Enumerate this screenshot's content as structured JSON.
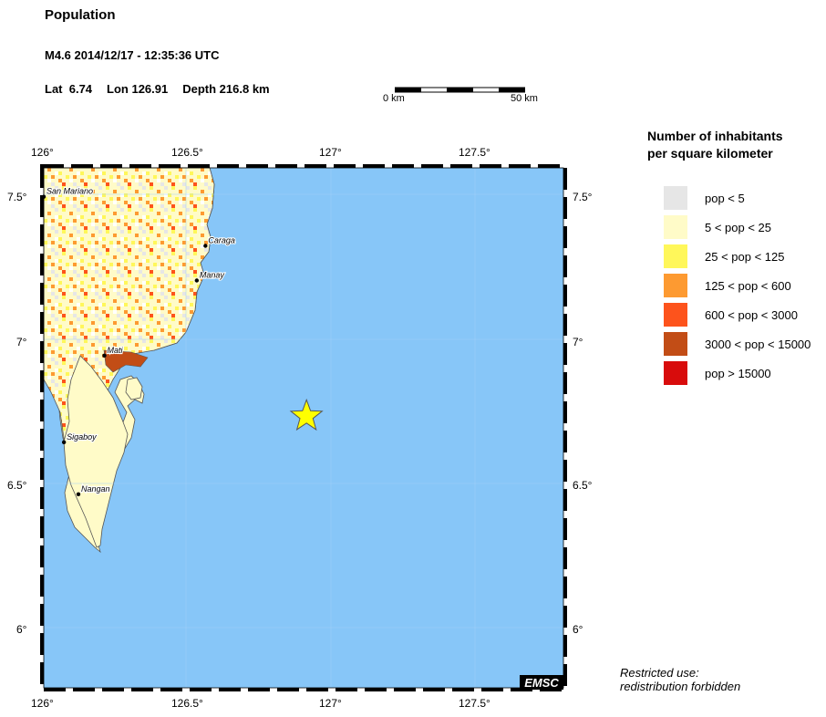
{
  "header": {
    "title": "Population",
    "event": "M4.6  2014/12/17 - 12:35:36 UTC",
    "lat": "Lat  6.74",
    "lon": "Lon 126.91",
    "depth": "Depth 216.8 km"
  },
  "scale_bar": {
    "start_label": "0 km",
    "end_label": "50 km"
  },
  "map": {
    "lon_ticks": [
      "126°",
      "126.5°",
      "127°",
      "127.5°"
    ],
    "lat_ticks": [
      "7.5°",
      "7°",
      "6.5°",
      "6°"
    ],
    "epicenter": {
      "lat": 6.74,
      "lon": 126.91
    },
    "cities": [
      {
        "name": "San Mariano",
        "lat": 7.5,
        "lon": 126.0
      },
      {
        "name": "Caraga",
        "lat": 7.33,
        "lon": 126.56
      },
      {
        "name": "Manay",
        "lat": 7.21,
        "lon": 126.53
      },
      {
        "name": "Mati",
        "lat": 6.95,
        "lon": 126.21
      },
      {
        "name": "Sigaboy",
        "lat": 6.65,
        "lon": 126.07
      },
      {
        "name": "Nangan",
        "lat": 6.47,
        "lon": 126.12
      }
    ],
    "watermark": "EMSC",
    "colors": {
      "sea": "#87c6f8",
      "land": "#ffffff",
      "epicenter": "#ffff00"
    }
  },
  "legend": {
    "title_line1": "Number of inhabitants",
    "title_line2": "per square kilometer",
    "items": [
      {
        "label": "pop < 5",
        "color": "#e6e6e6"
      },
      {
        "label": "5 < pop < 25",
        "color": "#fffbc8"
      },
      {
        "label": "25 < pop < 125",
        "color": "#fff75a"
      },
      {
        "label": "125 < pop < 600",
        "color": "#fd9a31"
      },
      {
        "label": "600 < pop < 3000",
        "color": "#fd531c"
      },
      {
        "label": "3000 < pop < 15000",
        "color": "#c24d16"
      },
      {
        "label": "pop > 15000",
        "color": "#d80c0c"
      }
    ]
  },
  "notice": {
    "line1": "Restricted use:",
    "line2": "redistribution forbidden"
  }
}
